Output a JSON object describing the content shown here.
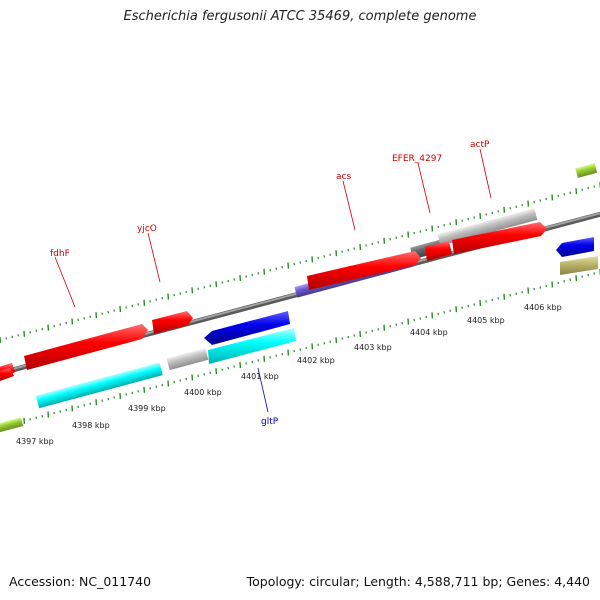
{
  "title": "Escherichia fergusonii ATCC 35469, complete genome",
  "footer": {
    "accession": "Accession: NC_011740",
    "topology": "Topology: circular; Length: 4,588,711 bp; Genes: 4,440"
  },
  "ticks": [
    "4397 kbp",
    "4398 kbp",
    "4399 kbp",
    "4400 kbp",
    "4401 kbp",
    "4402 kbp",
    "4403 kbp",
    "4404 kbp",
    "4405 kbp",
    "4406 kbp"
  ],
  "labels": {
    "fdhF": "fdhF",
    "yjcO": "yjcO",
    "acs": "acs",
    "EFER_4297": "EFER_4297",
    "actP": "actP",
    "gltP": "gltP"
  },
  "colors": {
    "backbone": "#888888",
    "forward_cds": "#ff0000",
    "cyan_feature": "#00ffff",
    "blue_feature": "#0000ee",
    "purple_feature": "#6a5acd",
    "gray_feature": "#c0c0c0",
    "dark_gray_feature": "#666666",
    "olive_feature": "#bdb76b",
    "green_feature": "#9acd32",
    "tick_color": "#2a8a2a",
    "label_red": "#cc0000",
    "label_blue": "#0000cc"
  }
}
